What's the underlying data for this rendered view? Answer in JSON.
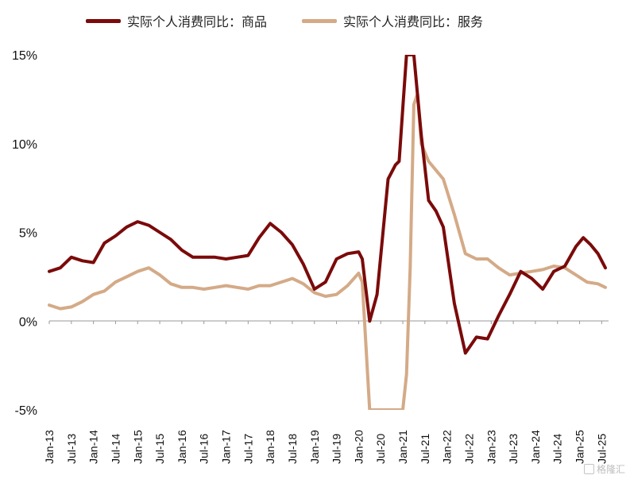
{
  "legend": {
    "goods_label": "实际个人消费同比：商品",
    "services_label": "实际个人消费同比：服务"
  },
  "watermark": {
    "text": "格隆汇"
  },
  "colors": {
    "goods": "#7B0A0A",
    "services": "#D4AA87",
    "axis": "#999999",
    "text": "#111111"
  },
  "chart_data": {
    "type": "line",
    "title": "",
    "xlabel": "",
    "ylabel": "",
    "ylim": [
      -5,
      15
    ],
    "y_ticks": [
      "15%",
      "10%",
      "5%",
      "0%",
      "-5%"
    ],
    "y_tick_values": [
      15,
      10,
      5,
      0,
      -5
    ],
    "x_tick_labels": [
      "Jan-13",
      "Jul-13",
      "Jan-14",
      "Jul-14",
      "Jan-15",
      "Jul-15",
      "Jan-16",
      "Jul-16",
      "Jan-17",
      "Jul-17",
      "Jan-18",
      "Jul-18",
      "Jan-19",
      "Jul-19",
      "Jan-20",
      "Jul-20",
      "Jan-21",
      "Jul-21",
      "Jan-22",
      "Jul-22",
      "Jan-23",
      "Jul-23",
      "Jan-24",
      "Jul-24",
      "Jan-25",
      "Jul-25"
    ],
    "legend_position": "top",
    "grid": false,
    "series": [
      {
        "name": "实际个人消费同比：商品",
        "color": "#7B0A0A",
        "points": [
          [
            "Jan-13",
            2.8
          ],
          [
            "Apr-13",
            3.0
          ],
          [
            "Jul-13",
            3.6
          ],
          [
            "Oct-13",
            3.4
          ],
          [
            "Jan-14",
            3.3
          ],
          [
            "Apr-14",
            4.4
          ],
          [
            "Jul-14",
            4.8
          ],
          [
            "Oct-14",
            5.3
          ],
          [
            "Jan-15",
            5.6
          ],
          [
            "Apr-15",
            5.4
          ],
          [
            "Jul-15",
            5.0
          ],
          [
            "Oct-15",
            4.6
          ],
          [
            "Jan-16",
            4.0
          ],
          [
            "Apr-16",
            3.6
          ],
          [
            "Jul-16",
            3.6
          ],
          [
            "Oct-16",
            3.6
          ],
          [
            "Jan-17",
            3.5
          ],
          [
            "Apr-17",
            3.6
          ],
          [
            "Jul-17",
            3.7
          ],
          [
            "Oct-17",
            4.7
          ],
          [
            "Jan-18",
            5.5
          ],
          [
            "Apr-18",
            5.0
          ],
          [
            "Jul-18",
            4.3
          ],
          [
            "Oct-18",
            3.2
          ],
          [
            "Jan-19",
            1.8
          ],
          [
            "Apr-19",
            2.2
          ],
          [
            "Jul-19",
            3.5
          ],
          [
            "Oct-19",
            3.8
          ],
          [
            "Jan-20",
            3.9
          ],
          [
            "Feb-20",
            3.5
          ],
          [
            "Apr-20",
            0.0
          ],
          [
            "Jun-20",
            1.5
          ],
          [
            "Sep-20",
            8.0
          ],
          [
            "Nov-20",
            8.8
          ],
          [
            "Dec-20",
            9.0
          ],
          [
            "Jan-21",
            12.0
          ],
          [
            "Feb-21",
            15.0
          ],
          [
            "Apr-21",
            15.0
          ],
          [
            "Jun-21",
            10.5
          ],
          [
            "Aug-21",
            6.8
          ],
          [
            "Oct-21",
            6.2
          ],
          [
            "Dec-21",
            5.3
          ],
          [
            "Mar-22",
            1.0
          ],
          [
            "Jun-22",
            -1.8
          ],
          [
            "Sep-22",
            -0.9
          ],
          [
            "Dec-22",
            -1.0
          ],
          [
            "Mar-23",
            0.3
          ],
          [
            "Jun-23",
            1.5
          ],
          [
            "Sep-23",
            2.8
          ],
          [
            "Dec-23",
            2.4
          ],
          [
            "Mar-24",
            1.8
          ],
          [
            "Jun-24",
            2.8
          ],
          [
            "Sep-24",
            3.1
          ],
          [
            "Dec-24",
            4.2
          ],
          [
            "Feb-25",
            4.7
          ],
          [
            "Apr-25",
            4.3
          ],
          [
            "Jun-25",
            3.8
          ],
          [
            "Aug-25",
            3.0
          ]
        ]
      },
      {
        "name": "实际个人消费同比：服务",
        "color": "#D4AA87",
        "points": [
          [
            "Jan-13",
            0.9
          ],
          [
            "Apr-13",
            0.7
          ],
          [
            "Jul-13",
            0.8
          ],
          [
            "Oct-13",
            1.1
          ],
          [
            "Jan-14",
            1.5
          ],
          [
            "Apr-14",
            1.7
          ],
          [
            "Jul-14",
            2.2
          ],
          [
            "Oct-14",
            2.5
          ],
          [
            "Jan-15",
            2.8
          ],
          [
            "Apr-15",
            3.0
          ],
          [
            "Jul-15",
            2.6
          ],
          [
            "Oct-15",
            2.1
          ],
          [
            "Jan-16",
            1.9
          ],
          [
            "Apr-16",
            1.9
          ],
          [
            "Jul-16",
            1.8
          ],
          [
            "Oct-16",
            1.9
          ],
          [
            "Jan-17",
            2.0
          ],
          [
            "Apr-17",
            1.9
          ],
          [
            "Jul-17",
            1.8
          ],
          [
            "Oct-17",
            2.0
          ],
          [
            "Jan-18",
            2.0
          ],
          [
            "Apr-18",
            2.2
          ],
          [
            "Jul-18",
            2.4
          ],
          [
            "Oct-18",
            2.1
          ],
          [
            "Jan-19",
            1.6
          ],
          [
            "Apr-19",
            1.4
          ],
          [
            "Jul-19",
            1.5
          ],
          [
            "Oct-19",
            2.0
          ],
          [
            "Jan-20",
            2.7
          ],
          [
            "Feb-20",
            2.2
          ],
          [
            "Apr-20",
            -5.0
          ],
          [
            "Oct-20",
            -5.0
          ],
          [
            "Jan-21",
            -5.0
          ],
          [
            "Feb-21",
            -3.0
          ],
          [
            "Mar-21",
            3.0
          ],
          [
            "Apr-21",
            12.2
          ],
          [
            "May-21",
            12.8
          ],
          [
            "Jun-21",
            10.0
          ],
          [
            "Aug-21",
            9.0
          ],
          [
            "Oct-21",
            8.5
          ],
          [
            "Dec-21",
            8.0
          ],
          [
            "Mar-22",
            6.0
          ],
          [
            "Jun-22",
            3.8
          ],
          [
            "Sep-22",
            3.5
          ],
          [
            "Dec-22",
            3.5
          ],
          [
            "Mar-23",
            3.0
          ],
          [
            "Jun-23",
            2.6
          ],
          [
            "Sep-23",
            2.7
          ],
          [
            "Dec-23",
            2.8
          ],
          [
            "Mar-24",
            2.9
          ],
          [
            "Jun-24",
            3.1
          ],
          [
            "Sep-24",
            3.0
          ],
          [
            "Dec-24",
            2.6
          ],
          [
            "Mar-25",
            2.2
          ],
          [
            "Jun-25",
            2.1
          ],
          [
            "Aug-25",
            1.9
          ]
        ]
      }
    ]
  }
}
